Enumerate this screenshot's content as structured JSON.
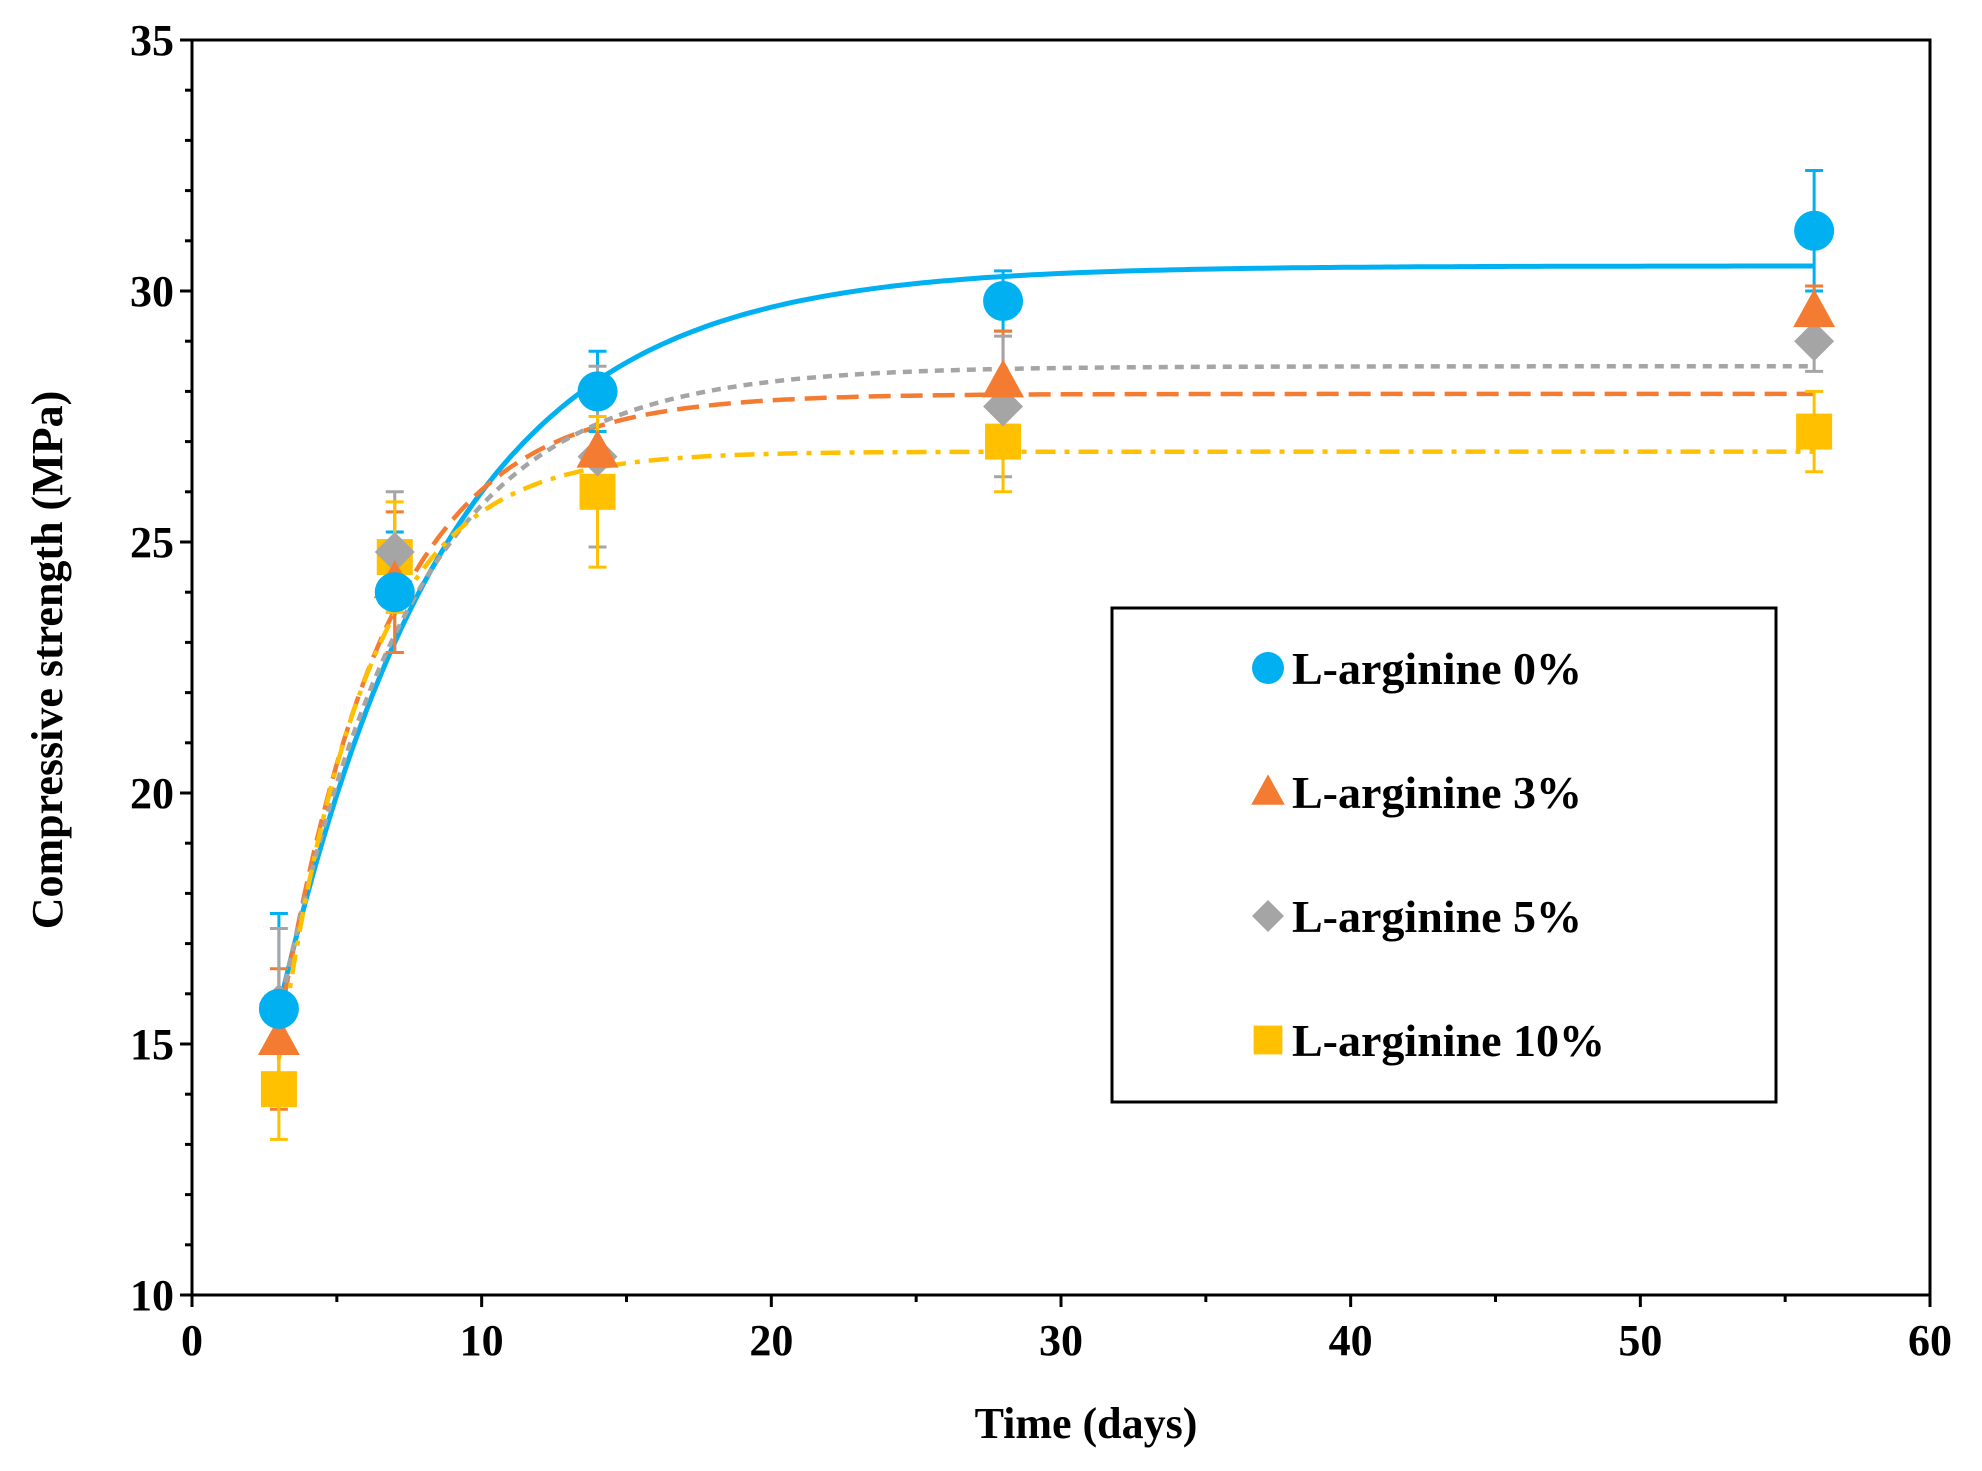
{
  "chart_data": {
    "type": "scatter",
    "title": "",
    "xlabel": "Time (days)",
    "ylabel": "Compressive strength (MPa)",
    "xlim": [
      0,
      60
    ],
    "ylim": [
      10,
      35
    ],
    "x_ticks": [
      0,
      10,
      20,
      30,
      40,
      50,
      60
    ],
    "y_ticks": [
      10,
      15,
      20,
      25,
      30,
      35
    ],
    "x_minor_step": 5,
    "y_minor_step": 1,
    "grid": false,
    "legend_position": "center-right",
    "x": [
      3,
      7,
      14,
      28,
      56
    ],
    "series": [
      {
        "name": "L-arginine 0%",
        "marker": "circle",
        "color": "#00b0f0",
        "values": [
          15.7,
          24.0,
          28.0,
          29.8,
          31.2
        ],
        "error": [
          1.9,
          1.2,
          0.8,
          0.6,
          1.2
        ],
        "fit": {
          "style": "solid",
          "plateau": 30.5,
          "start": 15.7,
          "rate": 0.17
        }
      },
      {
        "name": "L-arginine 3%",
        "marker": "triangle",
        "color": "#f47b32",
        "values": [
          15.1,
          24.2,
          26.8,
          28.2,
          29.6
        ],
        "error": [
          1.4,
          1.4,
          0.7,
          1.0,
          0.5
        ],
        "fit": {
          "style": "dashed",
          "plateau": 27.95,
          "start": 15.3,
          "rate": 0.27
        }
      },
      {
        "name": "L-arginine 5%",
        "marker": "diamond",
        "color": "#a5a5a5",
        "values": [
          15.8,
          24.8,
          26.7,
          27.7,
          29.0
        ],
        "error": [
          1.5,
          1.2,
          1.8,
          1.4,
          0.6
        ],
        "fit": {
          "style": "dotted",
          "plateau": 28.5,
          "start": 15.6,
          "rate": 0.22
        }
      },
      {
        "name": "L-arginine 10%",
        "marker": "square",
        "color": "#ffc000",
        "values": [
          14.1,
          24.7,
          26.0,
          27.0,
          27.2
        ],
        "error": [
          1.0,
          1.1,
          1.5,
          1.0,
          0.8
        ],
        "fit": {
          "style": "dashdot",
          "plateau": 26.8,
          "start": 14.7,
          "rate": 0.33
        }
      }
    ]
  }
}
